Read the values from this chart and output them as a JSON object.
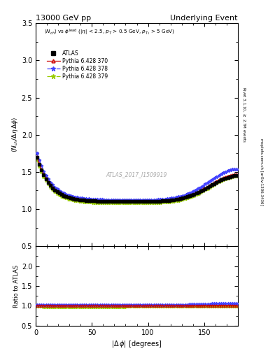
{
  "title_left": "13000 GeV pp",
  "title_right": "Underlying Event",
  "ylabel_main": "\\langle N_{ch} / \\Delta\\eta\\,\\Delta\\phi \\rangle",
  "ylabel_ratio": "Ratio to ATLAS",
  "xlabel": "|\\Delta\\,\\phi| [degrees]",
  "annotation": "ATLAS_2017_I1509919",
  "header": "\\langle N_{ch}\\rangle vs \\phi^{lead} (|\\eta| < 2.5, p_{T} > 0.5 GeV, p_{T_1} > 5 GeV)",
  "rivet_label": "Rivet 3.1.10, \\geq 2.7M events",
  "mcplots_label": "mcplots.cern.ch [arXiv:1306.3436]",
  "ylim_main": [
    0.5,
    3.5
  ],
  "ylim_ratio": [
    0.5,
    2.5
  ],
  "xlim": [
    0,
    180
  ],
  "yticks_main": [
    0.5,
    1.0,
    1.5,
    2.0,
    2.5,
    3.0,
    3.5
  ],
  "yticks_ratio": [
    0.5,
    1.0,
    1.5,
    2.0
  ],
  "xticks": [
    0,
    50,
    100,
    150
  ],
  "series_labels": [
    "ATLAS",
    "Pythia 6.428 370",
    "Pythia 6.428 378",
    "Pythia 6.428 379"
  ],
  "series_colors": [
    "black",
    "#cc0000",
    "#4444ff",
    "#99cc00"
  ],
  "series_markers": [
    "s",
    "^",
    "*",
    "*"
  ],
  "series_linestyles": [
    "none",
    "-",
    "-.",
    "-."
  ]
}
